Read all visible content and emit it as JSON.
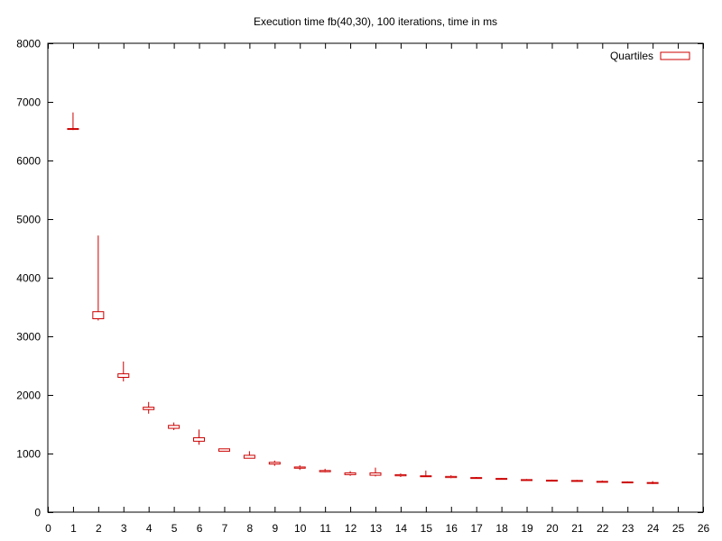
{
  "chart_data": {
    "type": "box",
    "title": "Execution time fb(40,30), 100 iterations, time in ms",
    "xlabel": "",
    "ylabel": "",
    "xlim": [
      0,
      26
    ],
    "ylim": [
      0,
      8000
    ],
    "xticks": [
      0,
      1,
      2,
      3,
      4,
      5,
      6,
      7,
      8,
      9,
      10,
      11,
      12,
      13,
      14,
      15,
      16,
      17,
      18,
      19,
      20,
      21,
      22,
      23,
      24,
      25,
      26
    ],
    "yticks": [
      0,
      1000,
      2000,
      3000,
      4000,
      5000,
      6000,
      7000,
      8000
    ],
    "grid": false,
    "legend_position": "top-right",
    "series": [
      {
        "name": "Quartiles",
        "color": "#cc0000",
        "points": [
          {
            "x": 1,
            "min": 6520,
            "q1": 6530,
            "q3": 6545,
            "max": 6820
          },
          {
            "x": 2,
            "min": 3270,
            "q1": 3300,
            "q3": 3420,
            "max": 4720
          },
          {
            "x": 3,
            "min": 2230,
            "q1": 2300,
            "q3": 2360,
            "max": 2570
          },
          {
            "x": 4,
            "min": 1680,
            "q1": 1750,
            "q3": 1790,
            "max": 1880
          },
          {
            "x": 5,
            "min": 1400,
            "q1": 1430,
            "q3": 1480,
            "max": 1530
          },
          {
            "x": 6,
            "min": 1150,
            "q1": 1210,
            "q3": 1270,
            "max": 1410
          },
          {
            "x": 7,
            "min": 1040,
            "q1": 1040,
            "q3": 1080,
            "max": 1080
          },
          {
            "x": 8,
            "min": 920,
            "q1": 920,
            "q3": 970,
            "max": 1040
          },
          {
            "x": 9,
            "min": 790,
            "q1": 820,
            "q3": 850,
            "max": 880
          },
          {
            "x": 10,
            "min": 720,
            "q1": 750,
            "q3": 770,
            "max": 800
          },
          {
            "x": 11,
            "min": 680,
            "q1": 690,
            "q3": 710,
            "max": 740
          },
          {
            "x": 12,
            "min": 620,
            "q1": 640,
            "q3": 670,
            "max": 700
          },
          {
            "x": 13,
            "min": 610,
            "q1": 630,
            "q3": 670,
            "max": 760
          },
          {
            "x": 14,
            "min": 600,
            "q1": 620,
            "q3": 640,
            "max": 660
          },
          {
            "x": 15,
            "min": 600,
            "q1": 610,
            "q3": 620,
            "max": 710
          },
          {
            "x": 16,
            "min": 580,
            "q1": 590,
            "q3": 610,
            "max": 630
          },
          {
            "x": 17,
            "min": 570,
            "q1": 580,
            "q3": 590,
            "max": 600
          },
          {
            "x": 18,
            "min": 560,
            "q1": 565,
            "q3": 575,
            "max": 580
          },
          {
            "x": 19,
            "min": 540,
            "q1": 545,
            "q3": 555,
            "max": 565
          },
          {
            "x": 20,
            "min": 530,
            "q1": 535,
            "q3": 545,
            "max": 555
          },
          {
            "x": 21,
            "min": 520,
            "q1": 525,
            "q3": 540,
            "max": 550
          },
          {
            "x": 22,
            "min": 510,
            "q1": 515,
            "q3": 525,
            "max": 540
          },
          {
            "x": 23,
            "min": 500,
            "q1": 505,
            "q3": 515,
            "max": 525
          },
          {
            "x": 24,
            "min": 480,
            "q1": 490,
            "q3": 505,
            "max": 530
          }
        ]
      }
    ]
  }
}
